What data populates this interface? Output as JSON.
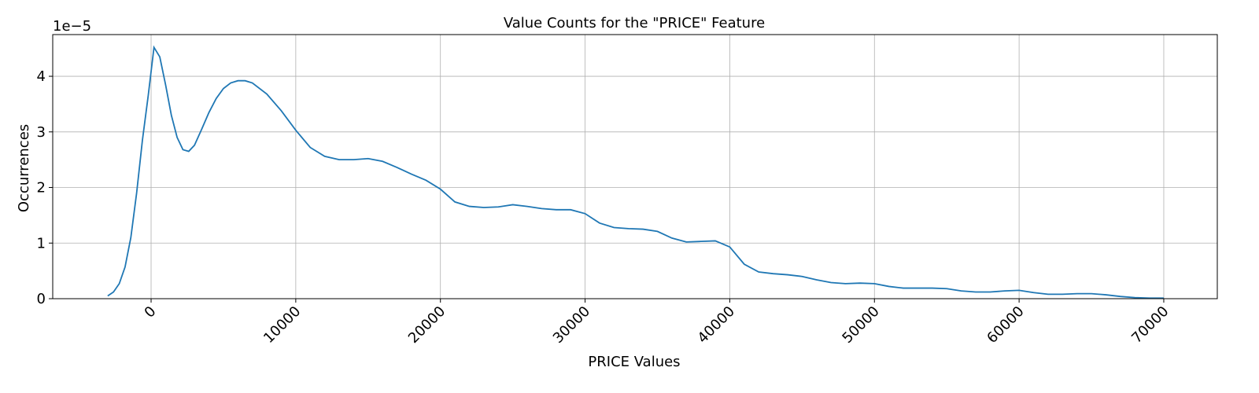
{
  "chart_data": {
    "type": "line",
    "title": "Value Counts for the \"PRICE\" Feature",
    "xlabel": "PRICE Values",
    "ylabel": "Occurrences",
    "y_offset_label": "1e−5",
    "xlim": [
      -6800,
      73700
    ],
    "ylim": [
      0,
      4.75
    ],
    "x_ticks": [
      0,
      10000,
      20000,
      30000,
      40000,
      50000,
      60000,
      70000
    ],
    "x_tick_labels": [
      "0",
      "10000",
      "20000",
      "30000",
      "40000",
      "50000",
      "60000",
      "70000"
    ],
    "y_ticks": [
      0,
      1,
      2,
      3,
      4
    ],
    "y_tick_labels": [
      "0",
      "1",
      "2",
      "3",
      "4"
    ],
    "grid": true,
    "line_color": "#1f77b4",
    "series": [
      {
        "x": [
          -3000,
          -2600,
          -2200,
          -1800,
          -1400,
          -1000,
          -600,
          -200,
          200,
          600,
          1000,
          1400,
          1800,
          2200,
          2600,
          3000,
          3500,
          4000,
          4500,
          5000,
          5500,
          6000,
          6500,
          7000,
          8000,
          9000,
          10000,
          11000,
          12000,
          13000,
          14000,
          15000,
          16000,
          17000,
          18000,
          19000,
          20000,
          21000,
          22000,
          23000,
          24000,
          25000,
          26000,
          27000,
          28000,
          29000,
          30000,
          31000,
          32000,
          33000,
          34000,
          35000,
          36000,
          37000,
          38000,
          39000,
          40000,
          41000,
          42000,
          43000,
          44000,
          45000,
          46000,
          47000,
          48000,
          49000,
          50000,
          51000,
          52000,
          53000,
          54000,
          55000,
          56000,
          57000,
          58000,
          59000,
          60000,
          61000,
          62000,
          63000,
          64000,
          65000,
          66000,
          67000,
          68000,
          69000,
          70000
        ],
        "y": [
          0.05,
          0.12,
          0.27,
          0.57,
          1.1,
          1.9,
          2.85,
          3.65,
          4.52,
          4.35,
          3.85,
          3.3,
          2.9,
          2.68,
          2.65,
          2.76,
          3.05,
          3.35,
          3.6,
          3.78,
          3.88,
          3.92,
          3.92,
          3.88,
          3.68,
          3.38,
          3.03,
          2.72,
          2.56,
          2.5,
          2.5,
          2.52,
          2.47,
          2.36,
          2.24,
          2.13,
          1.97,
          1.74,
          1.66,
          1.64,
          1.65,
          1.69,
          1.66,
          1.62,
          1.6,
          1.6,
          1.53,
          1.36,
          1.28,
          1.26,
          1.25,
          1.21,
          1.09,
          1.02,
          1.03,
          1.04,
          0.93,
          0.62,
          0.48,
          0.45,
          0.43,
          0.4,
          0.34,
          0.29,
          0.27,
          0.28,
          0.27,
          0.22,
          0.19,
          0.19,
          0.19,
          0.18,
          0.14,
          0.12,
          0.12,
          0.14,
          0.15,
          0.11,
          0.08,
          0.08,
          0.09,
          0.09,
          0.07,
          0.04,
          0.02,
          0.01,
          0.01
        ]
      }
    ]
  }
}
